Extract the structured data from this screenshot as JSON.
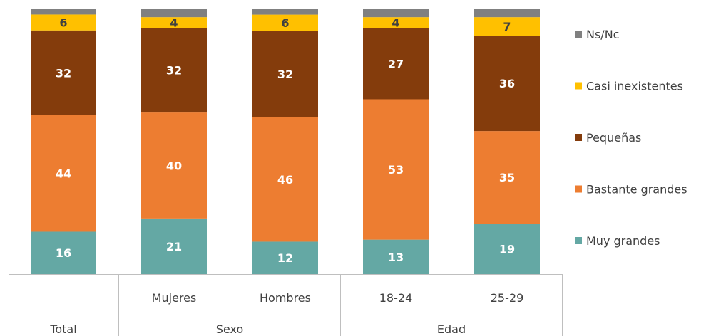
{
  "chart_data": {
    "type": "bar",
    "stacked": true,
    "normalized_percent": true,
    "categories": [
      "Total",
      "Mujeres",
      "Hombres",
      "18-24",
      "25-29"
    ],
    "groups": [
      {
        "label": "Total",
        "categories": [
          "Total"
        ]
      },
      {
        "label": "Sexo",
        "categories": [
          "Mujeres",
          "Hombres"
        ]
      },
      {
        "label": "Edad",
        "categories": [
          "18-24",
          "25-29"
        ]
      }
    ],
    "series": [
      {
        "name": "Muy grandes",
        "color": "#64A8A4",
        "values": [
          16,
          21,
          12,
          13,
          19
        ]
      },
      {
        "name": "Bastante grandes",
        "color": "#ED7D31",
        "values": [
          44,
          40,
          46,
          53,
          35
        ]
      },
      {
        "name": "Pequeñas",
        "color": "#843C0C",
        "values": [
          32,
          32,
          32,
          27,
          36
        ]
      },
      {
        "name": "Casi inexistentes",
        "color": "#FFC000",
        "values": [
          6,
          4,
          6,
          4,
          7
        ]
      },
      {
        "name": "Ns/Nc",
        "color": "#808080",
        "values": [
          2,
          3,
          2,
          3,
          3
        ]
      }
    ],
    "labeled_series": [
      "Muy grandes",
      "Bastante grandes",
      "Pequeñas",
      "Casi inexistentes"
    ],
    "label_colors": {
      "Casi inexistentes": "#404040",
      "default": "#ffffff"
    },
    "legend": {
      "position": "right",
      "order": [
        "Ns/Nc",
        "Casi inexistentes",
        "Pequeñas",
        "Bastante grandes",
        "Muy grandes"
      ]
    },
    "ylim": [
      0,
      100
    ],
    "grid": false,
    "title": "",
    "xlabel": "",
    "ylabel": ""
  }
}
